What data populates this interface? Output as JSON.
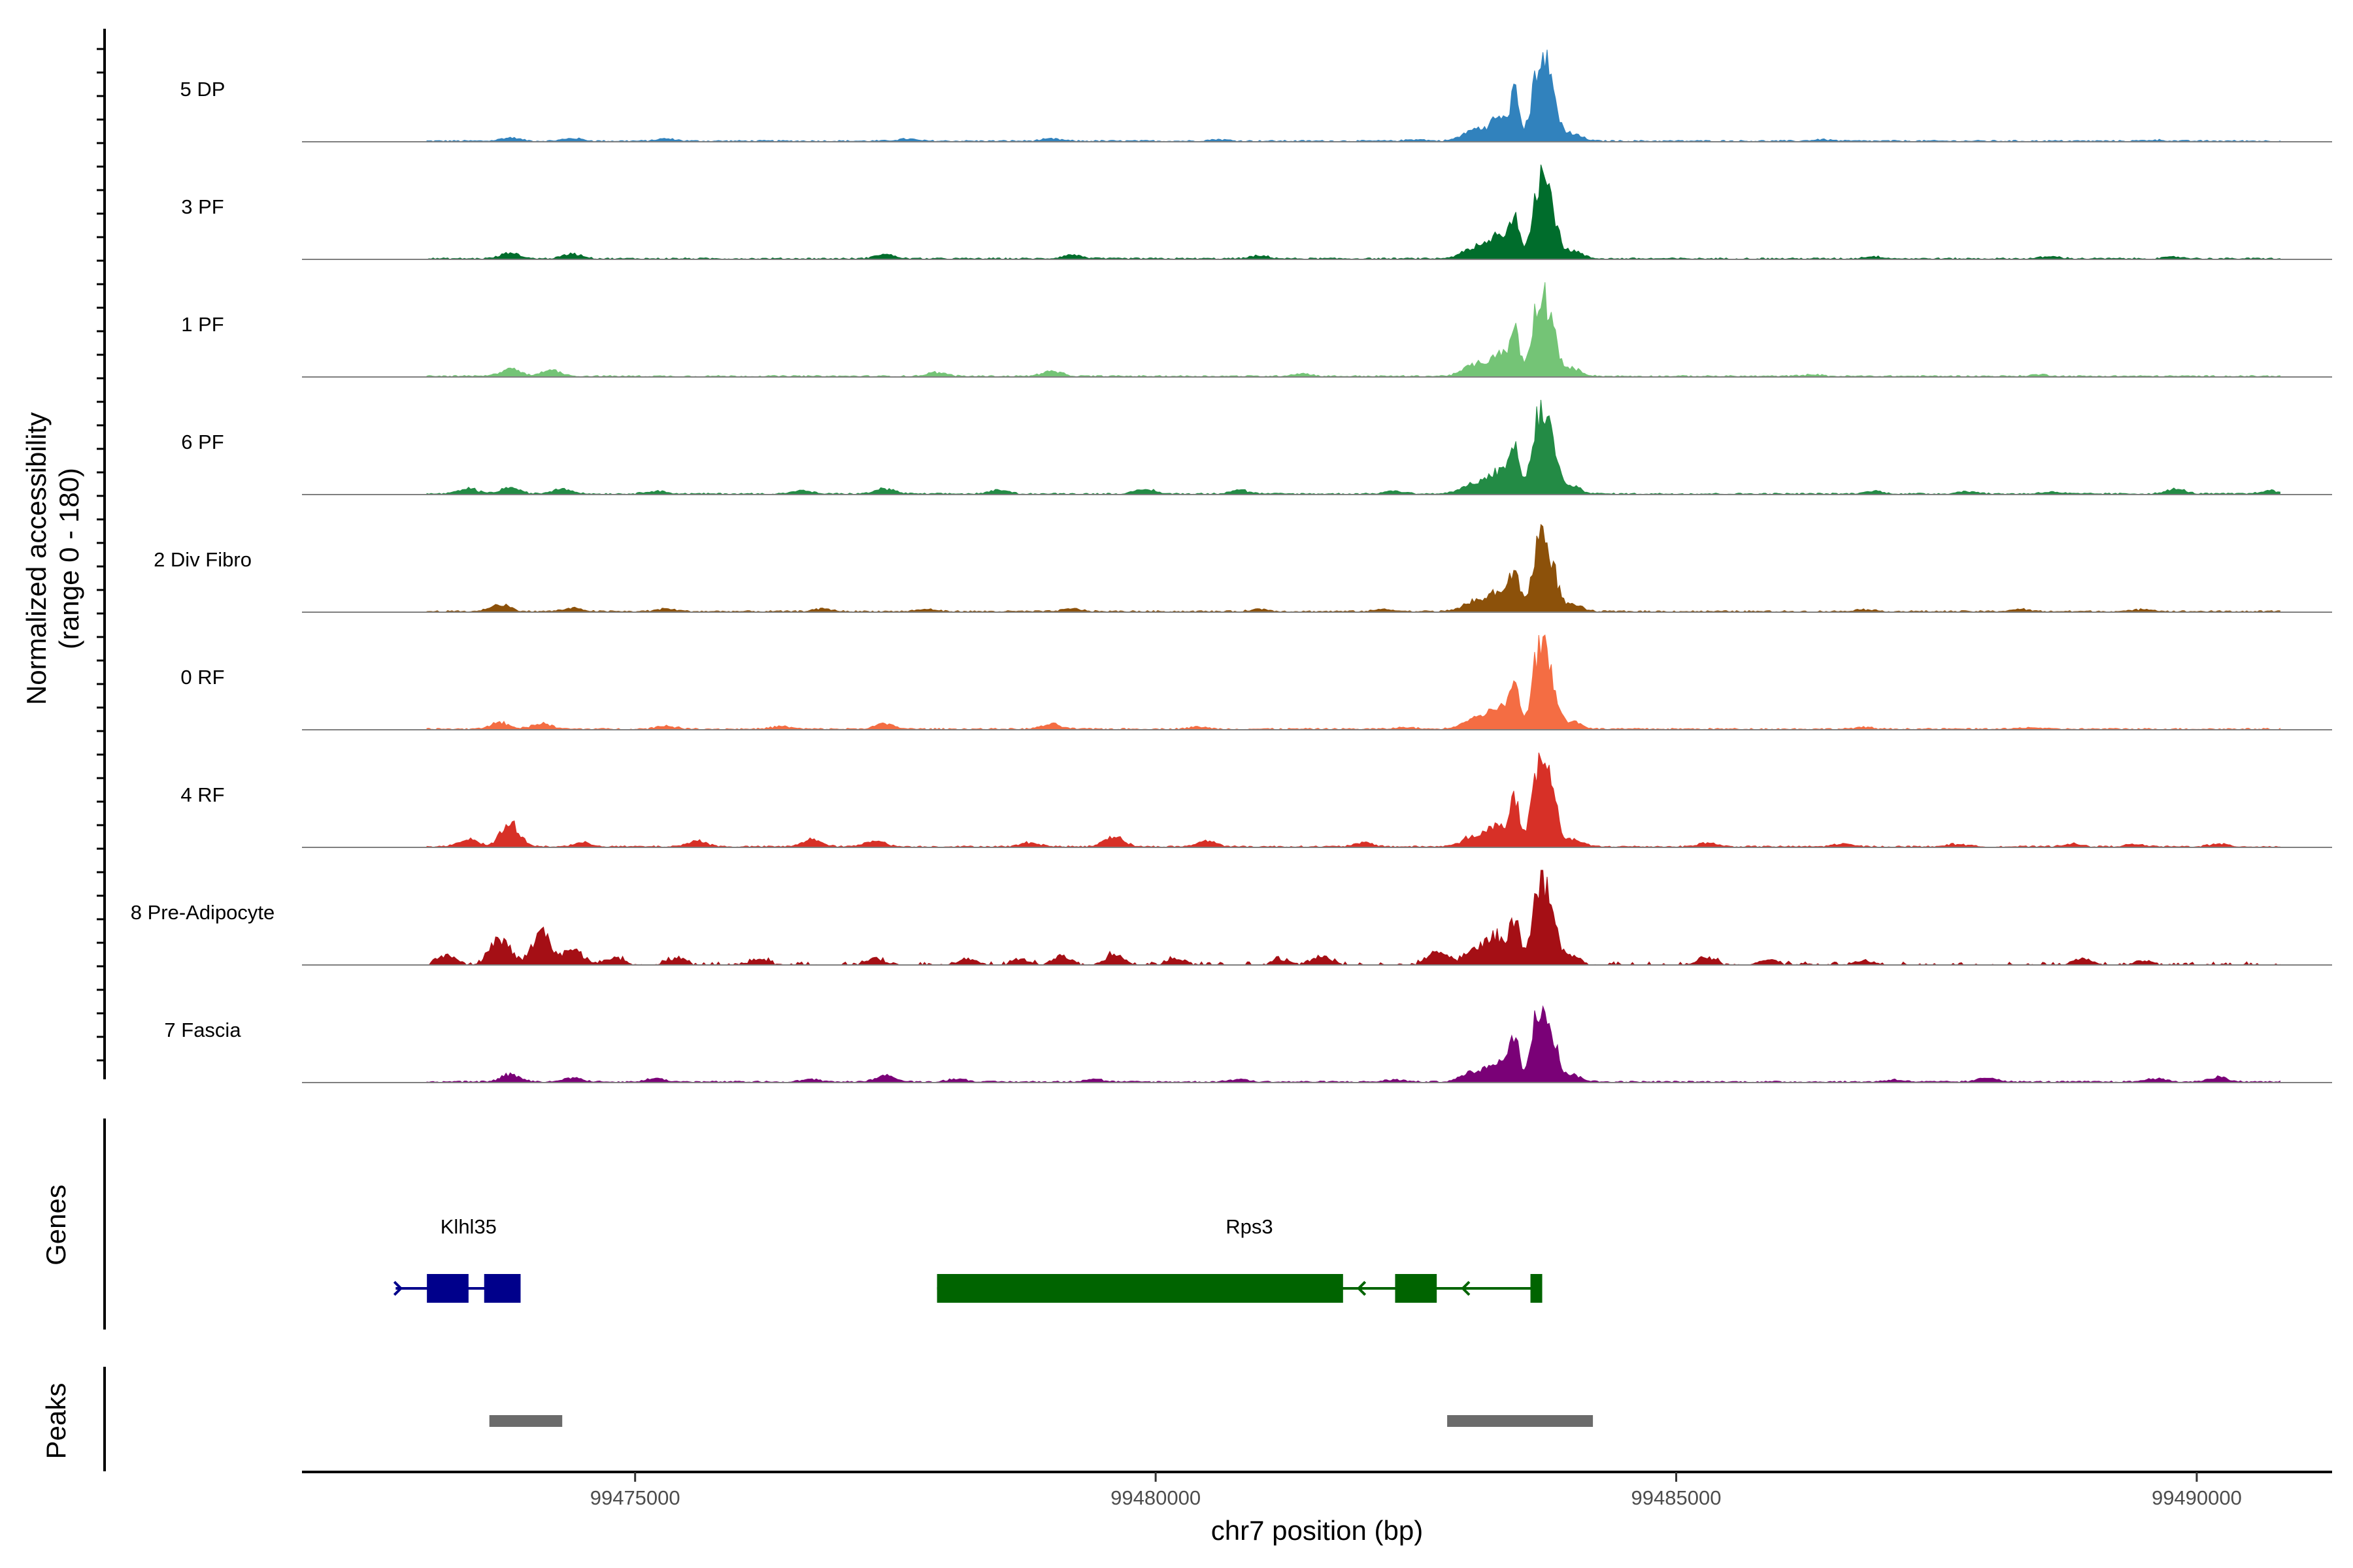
{
  "chart_data": {
    "type": "area",
    "title": "",
    "ylabel_line1": "Normalized accessibility",
    "ylabel_line2": "(range 0 - 180)",
    "ylim": [
      0,
      180
    ],
    "xlabel": "chr7 position (bp)",
    "xlim": [
      99471800,
      99491300
    ],
    "x_ticks": [
      99475000,
      99480000,
      99485000,
      99490000
    ],
    "x_tick_labels": [
      "99475000",
      "99480000",
      "99485000",
      "99490000"
    ],
    "tracks": [
      {
        "name": "5 DP",
        "color": "#3182BD",
        "intensity": 1.0,
        "minor": [
          [
            99473800,
            6
          ],
          [
            99474400,
            5
          ],
          [
            99475300,
            4
          ],
          [
            99477600,
            4
          ],
          [
            99479000,
            4
          ],
          [
            99480600,
            3
          ],
          [
            99482500,
            3
          ],
          [
            99486400,
            3
          ],
          [
            99489600,
            2
          ]
        ],
        "sparse": false
      },
      {
        "name": "3 PF",
        "color": "#006D2C",
        "intensity": 1.0,
        "minor": [
          [
            99473800,
            10
          ],
          [
            99474400,
            9
          ],
          [
            99477400,
            8
          ],
          [
            99479200,
            7
          ],
          [
            99481000,
            5
          ],
          [
            99486900,
            4
          ],
          [
            99488600,
            4
          ],
          [
            99489800,
            3
          ]
        ],
        "sparse": false
      },
      {
        "name": "1 PF",
        "color": "#74C476",
        "intensity": 1.0,
        "minor": [
          [
            99473800,
            14
          ],
          [
            99474200,
            12
          ],
          [
            99477900,
            7
          ],
          [
            99479000,
            10
          ],
          [
            99481400,
            5
          ],
          [
            99486300,
            3
          ],
          [
            99488500,
            3
          ]
        ],
        "sparse": false
      },
      {
        "name": "6 PF",
        "color": "#238B45",
        "intensity": 1.0,
        "minor": [
          [
            99473400,
            10
          ],
          [
            99473800,
            12
          ],
          [
            99474300,
            10
          ],
          [
            99475200,
            6
          ],
          [
            99476600,
            6
          ],
          [
            99477400,
            10
          ],
          [
            99478500,
            7
          ],
          [
            99479900,
            9
          ],
          [
            99480800,
            7
          ],
          [
            99482300,
            6
          ],
          [
            99486900,
            5
          ],
          [
            99487800,
            5
          ],
          [
            99488600,
            4
          ],
          [
            99489800,
            9
          ],
          [
            99490700,
            6
          ]
        ],
        "sparse": false
      },
      {
        "name": "2 Div Fibro",
        "color": "#8C510A",
        "intensity": 0.9,
        "minor": [
          [
            99473700,
            14
          ],
          [
            99474400,
            6
          ],
          [
            99475300,
            5
          ],
          [
            99476800,
            5
          ],
          [
            99477800,
            4
          ],
          [
            99479200,
            5
          ],
          [
            99481000,
            4
          ],
          [
            99482200,
            4
          ],
          [
            99486800,
            4
          ],
          [
            99488300,
            4
          ],
          [
            99489500,
            4
          ]
        ],
        "sparse": false
      },
      {
        "name": "0 RF",
        "color": "#F46D43",
        "intensity": 1.0,
        "minor": [
          [
            99473700,
            12
          ],
          [
            99474100,
            11
          ],
          [
            99475300,
            6
          ],
          [
            99476400,
            5
          ],
          [
            99477400,
            10
          ],
          [
            99479000,
            9
          ],
          [
            99480400,
            4
          ],
          [
            99482400,
            3
          ],
          [
            99486800,
            3
          ],
          [
            99488400,
            3
          ]
        ],
        "sparse": false
      },
      {
        "name": "4 RF",
        "color": "#D73027",
        "intensity": 1.0,
        "minor": [
          [
            99473400,
            14
          ],
          [
            99473800,
            42
          ],
          [
            99474500,
            7
          ],
          [
            99475600,
            11
          ],
          [
            99476700,
            14
          ],
          [
            99477300,
            12
          ],
          [
            99478800,
            8
          ],
          [
            99479600,
            20
          ],
          [
            99480500,
            11
          ],
          [
            99482000,
            7
          ],
          [
            99485300,
            7
          ],
          [
            99486600,
            5
          ],
          [
            99487700,
            5
          ],
          [
            99488800,
            5
          ],
          [
            99489400,
            4
          ],
          [
            99490200,
            5
          ]
        ],
        "sparse": false
      },
      {
        "name": "8 Pre-Adipocyte",
        "color": "#A50F15",
        "intensity": 1.0,
        "minor": [
          [
            99473200,
            18
          ],
          [
            99473700,
            50
          ],
          [
            99474100,
            62
          ],
          [
            99474400,
            28
          ],
          [
            99474800,
            14
          ],
          [
            99475400,
            12
          ],
          [
            99476200,
            10
          ],
          [
            99477300,
            12
          ],
          [
            99478200,
            10
          ],
          [
            99478700,
            10
          ],
          [
            99479100,
            16
          ],
          [
            99479600,
            18
          ],
          [
            99480200,
            12
          ],
          [
            99481200,
            10
          ],
          [
            99481600,
            16
          ],
          [
            99482700,
            28
          ],
          [
            99483200,
            18
          ],
          [
            99485300,
            12
          ],
          [
            99485900,
            10
          ],
          [
            99486800,
            8
          ],
          [
            99488900,
            12
          ],
          [
            99489500,
            8
          ]
        ],
        "sparse": true
      },
      {
        "name": "7 Fascia",
        "color": "#7A0177",
        "intensity": 0.95,
        "minor": [
          [
            99473800,
            14
          ],
          [
            99474400,
            8
          ],
          [
            99475200,
            6
          ],
          [
            99476700,
            5
          ],
          [
            99477400,
            12
          ],
          [
            99478100,
            6
          ],
          [
            99479400,
            5
          ],
          [
            99480800,
            5
          ],
          [
            99482300,
            4
          ],
          [
            99487100,
            4
          ],
          [
            99488000,
            8
          ],
          [
            99489600,
            7
          ],
          [
            99490200,
            9
          ]
        ],
        "sparse": false
      }
    ],
    "genes": [
      {
        "name": "Klhl35",
        "strand": "+",
        "color": "#00008B",
        "start": 99472700,
        "end": 99473900,
        "exons": [
          [
            99473000,
            99473400
          ],
          [
            99473550,
            99473900
          ]
        ],
        "label_x": 99473400
      },
      {
        "name": "Rps3",
        "strand": "-",
        "color": "#006400",
        "start": 99477900,
        "end": 99483700,
        "exons": [
          [
            99477900,
            99481800
          ],
          [
            99482300,
            99482700
          ],
          [
            99483600,
            99483700
          ]
        ],
        "label_x": 99480900
      }
    ],
    "gene_track_label": "Genes",
    "peaks": [
      [
        99473600,
        99474300
      ],
      [
        99482800,
        99484200
      ]
    ],
    "peaks_color": "#6B6B6B",
    "peak_track_label": "Peaks",
    "main_peak_center": 99483700
  }
}
